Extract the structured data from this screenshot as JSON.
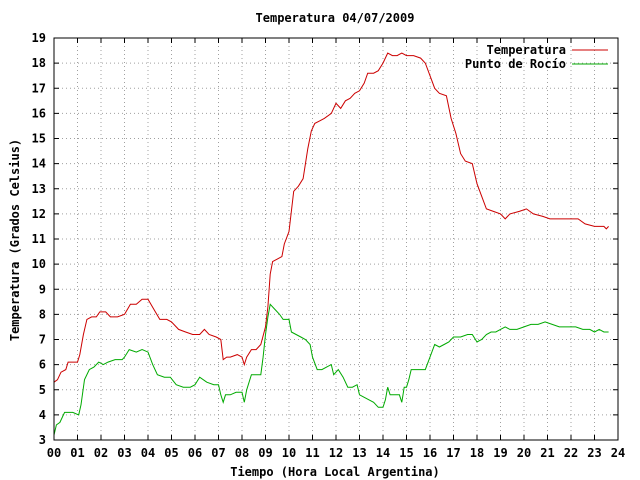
{
  "chart_data": {
    "type": "line",
    "title": "Temperatura 04/07/2009",
    "xlabel": "Tiempo (Hora Local Argentina)",
    "ylabel": "Temperatura (Grados Celsius)",
    "xlim": [
      0,
      24
    ],
    "ylim": [
      3,
      19
    ],
    "x_ticks": [
      "00",
      "01",
      "02",
      "03",
      "04",
      "05",
      "06",
      "07",
      "08",
      "09",
      "10",
      "11",
      "12",
      "13",
      "14",
      "15",
      "16",
      "17",
      "18",
      "19",
      "20",
      "21",
      "22",
      "23",
      "24"
    ],
    "y_ticks": [
      "3",
      "4",
      "5",
      "6",
      "7",
      "8",
      "9",
      "10",
      "11",
      "12",
      "13",
      "14",
      "15",
      "16",
      "17",
      "18",
      "19"
    ],
    "grid": true,
    "legend_position": "top-right",
    "series": [
      {
        "name": "Temperatura",
        "color": "#cc0000",
        "points": [
          [
            0.0,
            5.3
          ],
          [
            0.15,
            5.4
          ],
          [
            0.3,
            5.7
          ],
          [
            0.5,
            5.8
          ],
          [
            0.6,
            6.1
          ],
          [
            0.8,
            6.1
          ],
          [
            1.0,
            6.1
          ],
          [
            1.1,
            6.4
          ],
          [
            1.25,
            7.2
          ],
          [
            1.4,
            7.8
          ],
          [
            1.6,
            7.9
          ],
          [
            1.8,
            7.9
          ],
          [
            1.95,
            8.1
          ],
          [
            2.2,
            8.1
          ],
          [
            2.4,
            7.9
          ],
          [
            2.7,
            7.9
          ],
          [
            3.0,
            8.0
          ],
          [
            3.25,
            8.4
          ],
          [
            3.5,
            8.4
          ],
          [
            3.75,
            8.6
          ],
          [
            4.0,
            8.6
          ],
          [
            4.25,
            8.2
          ],
          [
            4.5,
            7.8
          ],
          [
            4.8,
            7.8
          ],
          [
            5.0,
            7.7
          ],
          [
            5.3,
            7.4
          ],
          [
            5.6,
            7.3
          ],
          [
            5.9,
            7.2
          ],
          [
            6.2,
            7.2
          ],
          [
            6.4,
            7.4
          ],
          [
            6.6,
            7.2
          ],
          [
            6.9,
            7.1
          ],
          [
            7.1,
            7.0
          ],
          [
            7.2,
            6.2
          ],
          [
            7.35,
            6.3
          ],
          [
            7.5,
            6.3
          ],
          [
            7.8,
            6.4
          ],
          [
            8.0,
            6.3
          ],
          [
            8.1,
            6.0
          ],
          [
            8.2,
            6.3
          ],
          [
            8.4,
            6.6
          ],
          [
            8.6,
            6.6
          ],
          [
            8.8,
            6.8
          ],
          [
            9.0,
            7.5
          ],
          [
            9.1,
            8.3
          ],
          [
            9.2,
            9.6
          ],
          [
            9.3,
            10.1
          ],
          [
            9.5,
            10.2
          ],
          [
            9.7,
            10.3
          ],
          [
            9.8,
            10.8
          ],
          [
            10.0,
            11.3
          ],
          [
            10.2,
            12.9
          ],
          [
            10.4,
            13.1
          ],
          [
            10.6,
            13.4
          ],
          [
            10.8,
            14.6
          ],
          [
            10.95,
            15.3
          ],
          [
            11.1,
            15.6
          ],
          [
            11.3,
            15.7
          ],
          [
            11.5,
            15.8
          ],
          [
            11.8,
            16.0
          ],
          [
            12.0,
            16.4
          ],
          [
            12.2,
            16.2
          ],
          [
            12.4,
            16.5
          ],
          [
            12.6,
            16.6
          ],
          [
            12.8,
            16.8
          ],
          [
            13.0,
            16.9
          ],
          [
            13.2,
            17.2
          ],
          [
            13.35,
            17.6
          ],
          [
            13.6,
            17.6
          ],
          [
            13.8,
            17.7
          ],
          [
            14.0,
            18.0
          ],
          [
            14.2,
            18.4
          ],
          [
            14.4,
            18.3
          ],
          [
            14.6,
            18.3
          ],
          [
            14.8,
            18.4
          ],
          [
            15.0,
            18.3
          ],
          [
            15.3,
            18.3
          ],
          [
            15.6,
            18.2
          ],
          [
            15.8,
            18.0
          ],
          [
            16.0,
            17.5
          ],
          [
            16.2,
            17.0
          ],
          [
            16.4,
            16.8
          ],
          [
            16.7,
            16.7
          ],
          [
            16.9,
            15.8
          ],
          [
            17.1,
            15.2
          ],
          [
            17.3,
            14.4
          ],
          [
            17.5,
            14.1
          ],
          [
            17.8,
            14.0
          ],
          [
            18.0,
            13.2
          ],
          [
            18.2,
            12.7
          ],
          [
            18.4,
            12.2
          ],
          [
            18.7,
            12.1
          ],
          [
            19.0,
            12.0
          ],
          [
            19.2,
            11.8
          ],
          [
            19.4,
            12.0
          ],
          [
            19.8,
            12.1
          ],
          [
            20.1,
            12.2
          ],
          [
            20.4,
            12.0
          ],
          [
            20.8,
            11.9
          ],
          [
            21.1,
            11.8
          ],
          [
            21.5,
            11.8
          ],
          [
            21.9,
            11.8
          ],
          [
            22.3,
            11.8
          ],
          [
            22.6,
            11.6
          ],
          [
            23.0,
            11.5
          ],
          [
            23.4,
            11.5
          ],
          [
            23.5,
            11.4
          ],
          [
            23.6,
            11.5
          ]
        ]
      },
      {
        "name": "Punto de Rocío",
        "color": "#00aa00",
        "points": [
          [
            0.0,
            3.2
          ],
          [
            0.1,
            3.6
          ],
          [
            0.25,
            3.7
          ],
          [
            0.45,
            4.1
          ],
          [
            0.6,
            4.1
          ],
          [
            0.8,
            4.1
          ],
          [
            1.05,
            4.0
          ],
          [
            1.15,
            4.4
          ],
          [
            1.3,
            5.4
          ],
          [
            1.5,
            5.8
          ],
          [
            1.7,
            5.9
          ],
          [
            1.9,
            6.1
          ],
          [
            2.1,
            6.0
          ],
          [
            2.3,
            6.1
          ],
          [
            2.6,
            6.2
          ],
          [
            2.9,
            6.2
          ],
          [
            3.0,
            6.3
          ],
          [
            3.2,
            6.6
          ],
          [
            3.5,
            6.5
          ],
          [
            3.75,
            6.6
          ],
          [
            4.0,
            6.5
          ],
          [
            4.2,
            6.0
          ],
          [
            4.4,
            5.6
          ],
          [
            4.7,
            5.5
          ],
          [
            4.95,
            5.5
          ],
          [
            5.2,
            5.2
          ],
          [
            5.5,
            5.1
          ],
          [
            5.8,
            5.1
          ],
          [
            6.0,
            5.2
          ],
          [
            6.2,
            5.5
          ],
          [
            6.5,
            5.3
          ],
          [
            6.8,
            5.2
          ],
          [
            7.0,
            5.2
          ],
          [
            7.1,
            4.8
          ],
          [
            7.2,
            4.5
          ],
          [
            7.3,
            4.8
          ],
          [
            7.5,
            4.8
          ],
          [
            7.75,
            4.9
          ],
          [
            8.0,
            4.9
          ],
          [
            8.1,
            4.5
          ],
          [
            8.2,
            5.0
          ],
          [
            8.4,
            5.6
          ],
          [
            8.6,
            5.6
          ],
          [
            8.8,
            5.6
          ],
          [
            8.9,
            6.3
          ],
          [
            9.0,
            7.2
          ],
          [
            9.1,
            7.9
          ],
          [
            9.2,
            8.4
          ],
          [
            9.4,
            8.2
          ],
          [
            9.6,
            8.0
          ],
          [
            9.75,
            7.8
          ],
          [
            10.0,
            7.8
          ],
          [
            10.1,
            7.3
          ],
          [
            10.3,
            7.2
          ],
          [
            10.5,
            7.1
          ],
          [
            10.7,
            7.0
          ],
          [
            10.9,
            6.8
          ],
          [
            11.0,
            6.3
          ],
          [
            11.2,
            5.8
          ],
          [
            11.4,
            5.8
          ],
          [
            11.6,
            5.9
          ],
          [
            11.8,
            6.0
          ],
          [
            11.9,
            5.6
          ],
          [
            12.1,
            5.8
          ],
          [
            12.3,
            5.5
          ],
          [
            12.5,
            5.1
          ],
          [
            12.7,
            5.1
          ],
          [
            12.9,
            5.2
          ],
          [
            13.0,
            4.8
          ],
          [
            13.2,
            4.7
          ],
          [
            13.4,
            4.6
          ],
          [
            13.6,
            4.5
          ],
          [
            13.8,
            4.3
          ],
          [
            14.0,
            4.3
          ],
          [
            14.1,
            4.6
          ],
          [
            14.2,
            5.1
          ],
          [
            14.3,
            4.8
          ],
          [
            14.5,
            4.8
          ],
          [
            14.7,
            4.8
          ],
          [
            14.8,
            4.5
          ],
          [
            14.9,
            5.1
          ],
          [
            15.0,
            5.1
          ],
          [
            15.1,
            5.4
          ],
          [
            15.2,
            5.8
          ],
          [
            15.5,
            5.8
          ],
          [
            15.8,
            5.8
          ],
          [
            16.0,
            6.3
          ],
          [
            16.2,
            6.8
          ],
          [
            16.4,
            6.7
          ],
          [
            16.6,
            6.8
          ],
          [
            16.8,
            6.9
          ],
          [
            17.0,
            7.1
          ],
          [
            17.3,
            7.1
          ],
          [
            17.6,
            7.2
          ],
          [
            17.8,
            7.2
          ],
          [
            18.0,
            6.9
          ],
          [
            18.2,
            7.0
          ],
          [
            18.4,
            7.2
          ],
          [
            18.6,
            7.3
          ],
          [
            18.8,
            7.3
          ],
          [
            19.0,
            7.4
          ],
          [
            19.2,
            7.5
          ],
          [
            19.4,
            7.4
          ],
          [
            19.7,
            7.4
          ],
          [
            20.0,
            7.5
          ],
          [
            20.3,
            7.6
          ],
          [
            20.6,
            7.6
          ],
          [
            20.9,
            7.7
          ],
          [
            21.2,
            7.6
          ],
          [
            21.5,
            7.5
          ],
          [
            21.9,
            7.5
          ],
          [
            22.2,
            7.5
          ],
          [
            22.5,
            7.4
          ],
          [
            22.8,
            7.4
          ],
          [
            23.0,
            7.3
          ],
          [
            23.2,
            7.4
          ],
          [
            23.4,
            7.3
          ],
          [
            23.6,
            7.3
          ]
        ]
      }
    ]
  }
}
